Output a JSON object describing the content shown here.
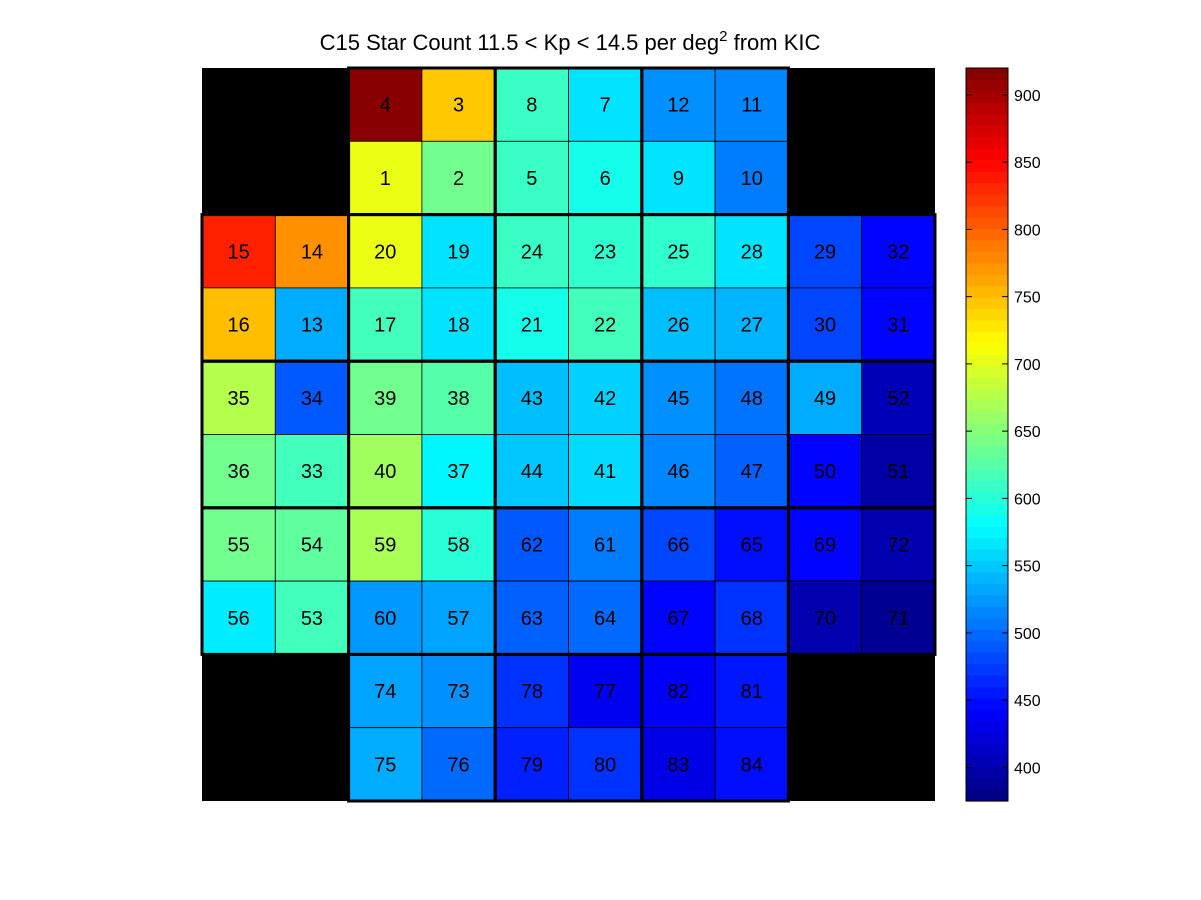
{
  "chart_data": {
    "type": "heatmap",
    "title": "C15 Star Count 11.5 < Kp < 14.5 per deg",
    "title_superscript": "2",
    "title_suffix": " from KIC",
    "colormap": "jet",
    "background_color": "#000000",
    "color_range": [
      375,
      920
    ],
    "colorbar_ticks": [
      "400",
      "450",
      "500",
      "550",
      "600",
      "650",
      "700",
      "750",
      "800",
      "850",
      "900"
    ],
    "grid_columns": 10,
    "grid_rows": 10,
    "cells": [
      {
        "label": "4",
        "col": 2,
        "row": 0,
        "value": 915
      },
      {
        "label": "3",
        "col": 3,
        "row": 0,
        "value": 745
      },
      {
        "label": "8",
        "col": 4,
        "row": 0,
        "value": 610
      },
      {
        "label": "7",
        "col": 5,
        "row": 0,
        "value": 565
      },
      {
        "label": "12",
        "col": 6,
        "row": 0,
        "value": 520
      },
      {
        "label": "11",
        "col": 7,
        "row": 0,
        "value": 515
      },
      {
        "label": "1",
        "col": 2,
        "row": 1,
        "value": 705
      },
      {
        "label": "2",
        "col": 3,
        "row": 1,
        "value": 640
      },
      {
        "label": "5",
        "col": 4,
        "row": 1,
        "value": 610
      },
      {
        "label": "6",
        "col": 5,
        "row": 1,
        "value": 590
      },
      {
        "label": "9",
        "col": 6,
        "row": 1,
        "value": 565
      },
      {
        "label": "10",
        "col": 7,
        "row": 1,
        "value": 510
      },
      {
        "label": "15",
        "col": 0,
        "row": 2,
        "value": 835
      },
      {
        "label": "14",
        "col": 1,
        "row": 2,
        "value": 775
      },
      {
        "label": "20",
        "col": 2,
        "row": 2,
        "value": 705
      },
      {
        "label": "19",
        "col": 3,
        "row": 2,
        "value": 565
      },
      {
        "label": "24",
        "col": 4,
        "row": 2,
        "value": 610
      },
      {
        "label": "23",
        "col": 5,
        "row": 2,
        "value": 605
      },
      {
        "label": "25",
        "col": 6,
        "row": 2,
        "value": 605
      },
      {
        "label": "28",
        "col": 7,
        "row": 2,
        "value": 565
      },
      {
        "label": "29",
        "col": 8,
        "row": 2,
        "value": 480
      },
      {
        "label": "32",
        "col": 9,
        "row": 2,
        "value": 445
      },
      {
        "label": "16",
        "col": 0,
        "row": 3,
        "value": 750
      },
      {
        "label": "13",
        "col": 1,
        "row": 3,
        "value": 535
      },
      {
        "label": "17",
        "col": 2,
        "row": 3,
        "value": 615
      },
      {
        "label": "18",
        "col": 3,
        "row": 3,
        "value": 565
      },
      {
        "label": "21",
        "col": 4,
        "row": 3,
        "value": 590
      },
      {
        "label": "22",
        "col": 5,
        "row": 3,
        "value": 615
      },
      {
        "label": "26",
        "col": 6,
        "row": 3,
        "value": 545
      },
      {
        "label": "27",
        "col": 7,
        "row": 3,
        "value": 540
      },
      {
        "label": "30",
        "col": 8,
        "row": 3,
        "value": 480
      },
      {
        "label": "31",
        "col": 9,
        "row": 3,
        "value": 445
      },
      {
        "label": "35",
        "col": 0,
        "row": 4,
        "value": 675
      },
      {
        "label": "34",
        "col": 1,
        "row": 4,
        "value": 490
      },
      {
        "label": "39",
        "col": 2,
        "row": 4,
        "value": 640
      },
      {
        "label": "38",
        "col": 3,
        "row": 4,
        "value": 625
      },
      {
        "label": "43",
        "col": 4,
        "row": 4,
        "value": 545
      },
      {
        "label": "42",
        "col": 5,
        "row": 4,
        "value": 555
      },
      {
        "label": "45",
        "col": 6,
        "row": 4,
        "value": 520
      },
      {
        "label": "48",
        "col": 7,
        "row": 4,
        "value": 505
      },
      {
        "label": "49",
        "col": 8,
        "row": 4,
        "value": 535
      },
      {
        "label": "52",
        "col": 9,
        "row": 4,
        "value": 405
      },
      {
        "label": "36",
        "col": 0,
        "row": 5,
        "value": 640
      },
      {
        "label": "33",
        "col": 1,
        "row": 5,
        "value": 615
      },
      {
        "label": "40",
        "col": 2,
        "row": 5,
        "value": 665
      },
      {
        "label": "37",
        "col": 3,
        "row": 5,
        "value": 575
      },
      {
        "label": "44",
        "col": 4,
        "row": 5,
        "value": 550
      },
      {
        "label": "41",
        "col": 5,
        "row": 5,
        "value": 560
      },
      {
        "label": "46",
        "col": 6,
        "row": 5,
        "value": 515
      },
      {
        "label": "47",
        "col": 7,
        "row": 5,
        "value": 495
      },
      {
        "label": "50",
        "col": 8,
        "row": 5,
        "value": 445
      },
      {
        "label": "51",
        "col": 9,
        "row": 5,
        "value": 395
      },
      {
        "label": "55",
        "col": 0,
        "row": 6,
        "value": 640
      },
      {
        "label": "54",
        "col": 1,
        "row": 6,
        "value": 630
      },
      {
        "label": "59",
        "col": 2,
        "row": 6,
        "value": 670
      },
      {
        "label": "58",
        "col": 3,
        "row": 6,
        "value": 600
      },
      {
        "label": "62",
        "col": 4,
        "row": 6,
        "value": 490
      },
      {
        "label": "61",
        "col": 5,
        "row": 6,
        "value": 510
      },
      {
        "label": "66",
        "col": 6,
        "row": 6,
        "value": 480
      },
      {
        "label": "65",
        "col": 7,
        "row": 6,
        "value": 450
      },
      {
        "label": "69",
        "col": 8,
        "row": 6,
        "value": 445
      },
      {
        "label": "72",
        "col": 9,
        "row": 6,
        "value": 400
      },
      {
        "label": "56",
        "col": 0,
        "row": 7,
        "value": 570
      },
      {
        "label": "53",
        "col": 1,
        "row": 7,
        "value": 615
      },
      {
        "label": "60",
        "col": 2,
        "row": 7,
        "value": 525
      },
      {
        "label": "57",
        "col": 3,
        "row": 7,
        "value": 530
      },
      {
        "label": "63",
        "col": 4,
        "row": 7,
        "value": 495
      },
      {
        "label": "64",
        "col": 5,
        "row": 7,
        "value": 500
      },
      {
        "label": "67",
        "col": 6,
        "row": 7,
        "value": 445
      },
      {
        "label": "68",
        "col": 7,
        "row": 7,
        "value": 470
      },
      {
        "label": "70",
        "col": 8,
        "row": 7,
        "value": 400
      },
      {
        "label": "71",
        "col": 9,
        "row": 7,
        "value": 385
      },
      {
        "label": "74",
        "col": 2,
        "row": 8,
        "value": 530
      },
      {
        "label": "73",
        "col": 3,
        "row": 8,
        "value": 520
      },
      {
        "label": "78",
        "col": 4,
        "row": 8,
        "value": 470
      },
      {
        "label": "77",
        "col": 5,
        "row": 8,
        "value": 435
      },
      {
        "label": "82",
        "col": 6,
        "row": 8,
        "value": 440
      },
      {
        "label": "81",
        "col": 7,
        "row": 8,
        "value": 455
      },
      {
        "label": "75",
        "col": 2,
        "row": 9,
        "value": 535
      },
      {
        "label": "76",
        "col": 3,
        "row": 9,
        "value": 500
      },
      {
        "label": "79",
        "col": 4,
        "row": 9,
        "value": 460
      },
      {
        "label": "80",
        "col": 5,
        "row": 9,
        "value": 470
      },
      {
        "label": "83",
        "col": 6,
        "row": 9,
        "value": 430
      },
      {
        "label": "84",
        "col": 7,
        "row": 9,
        "value": 450
      }
    ]
  }
}
